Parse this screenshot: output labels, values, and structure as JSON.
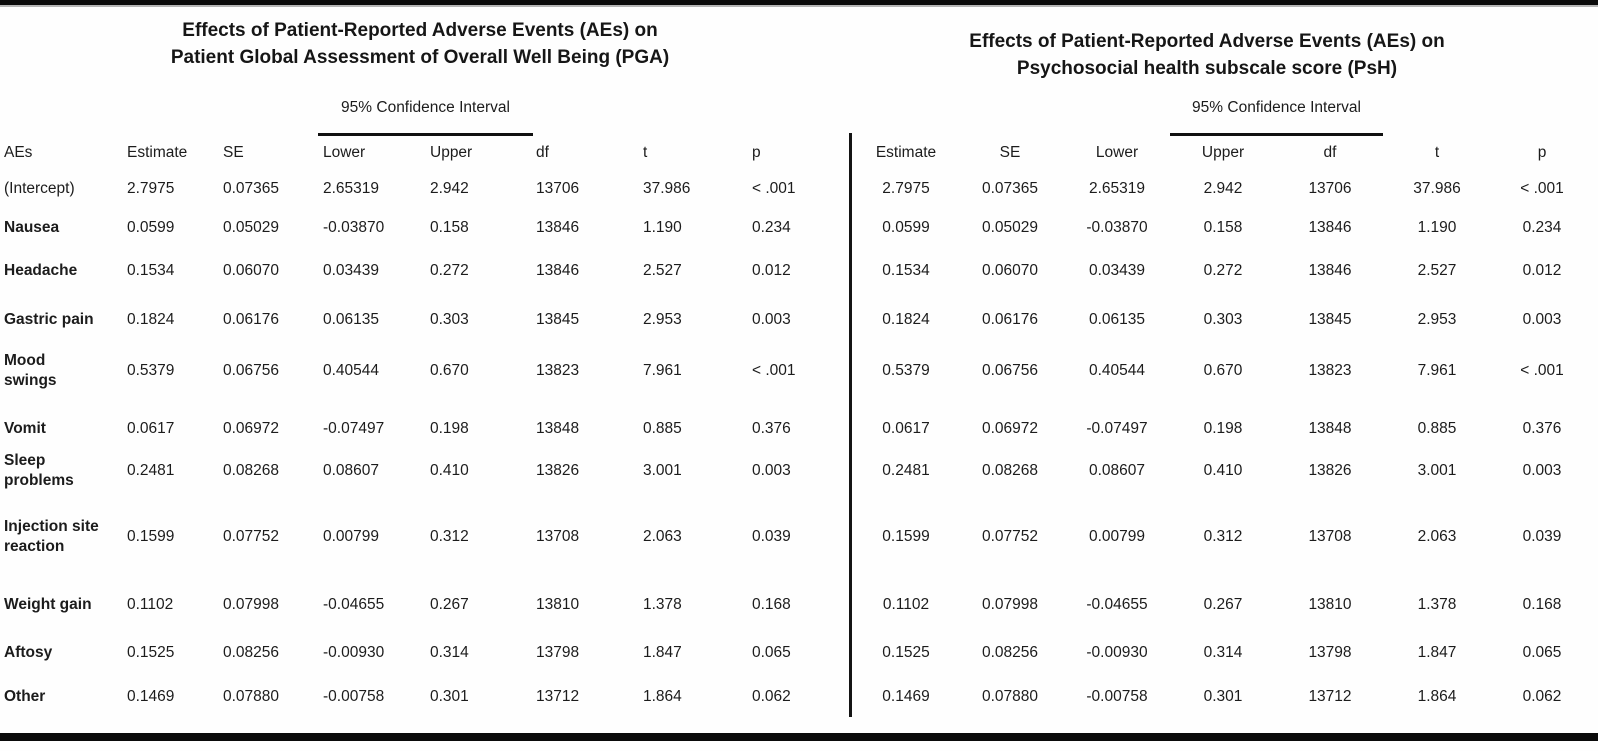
{
  "page": {
    "background": "#fefefe",
    "rule_color": "#0a0a0a"
  },
  "tables": [
    {
      "title_line1": "Effects of Patient-Reported Adverse Events (AEs) on",
      "title_line2": "Patient Global Assessment of Overall Well Being (PGA)",
      "ci_header": "95% Confidence Interval",
      "columns": {
        "aes": "AEs",
        "estimate": "Estimate",
        "se": "SE",
        "lower": "Lower",
        "upper": "Upper",
        "df": "df",
        "t": "t",
        "p": "p"
      },
      "rows": [
        {
          "label": "(Intercept)",
          "estimate": "2.7975",
          "se": "0.07365",
          "lower": "2.65319",
          "upper": "2.942",
          "df": "13706",
          "t": "37.986",
          "p": "< .001"
        },
        {
          "label": "Nausea",
          "estimate": "0.0599",
          "se": "0.05029",
          "lower": "-0.03870",
          "upper": "0.158",
          "df": "13846",
          "t": "1.190",
          "p": "0.234"
        },
        {
          "label": "Headache",
          "estimate": "0.1534",
          "se": "0.06070",
          "lower": "0.03439",
          "upper": "0.272",
          "df": "13846",
          "t": "2.527",
          "p": "0.012"
        },
        {
          "label": "Gastric pain",
          "estimate": "0.1824",
          "se": "0.06176",
          "lower": "0.06135",
          "upper": "0.303",
          "df": "13845",
          "t": "2.953",
          "p": "0.003"
        },
        {
          "label": "Mood swings",
          "estimate": "0.5379",
          "se": "0.06756",
          "lower": "0.40544",
          "upper": "0.670",
          "df": "13823",
          "t": "7.961",
          "p": "< .001"
        },
        {
          "label": "Vomit",
          "estimate": "0.0617",
          "se": "0.06972",
          "lower": "-0.07497",
          "upper": "0.198",
          "df": "13848",
          "t": "0.885",
          "p": "0.376"
        },
        {
          "label": "Sleep problems",
          "estimate": "0.2481",
          "se": "0.08268",
          "lower": "0.08607",
          "upper": "0.410",
          "df": "13826",
          "t": "3.001",
          "p": "0.003"
        },
        {
          "label": "Injection site reaction",
          "estimate": "0.1599",
          "se": "0.07752",
          "lower": "0.00799",
          "upper": "0.312",
          "df": "13708",
          "t": "2.063",
          "p": "0.039"
        },
        {
          "label": "Weight gain",
          "estimate": "0.1102",
          "se": "0.07998",
          "lower": "-0.04655",
          "upper": "0.267",
          "df": "13810",
          "t": "1.378",
          "p": "0.168"
        },
        {
          "label": "Aftosy",
          "estimate": "0.1525",
          "se": "0.08256",
          "lower": "-0.00930",
          "upper": "0.314",
          "df": "13798",
          "t": "1.847",
          "p": "0.065"
        },
        {
          "label": "Other",
          "estimate": "0.1469",
          "se": "0.07880",
          "lower": "-0.00758",
          "upper": "0.301",
          "df": "13712",
          "t": "1.864",
          "p": "0.062"
        }
      ]
    },
    {
      "title_line1": "Effects of Patient-Reported Adverse Events (AEs) on",
      "title_line2": "Psychosocial health subscale score (PsH)",
      "ci_header": "95% Confidence Interval",
      "columns": {
        "estimate": "Estimate",
        "se": "SE",
        "lower": "Lower",
        "upper": "Upper",
        "df": "df",
        "t": "t",
        "p": "p"
      },
      "rows": [
        {
          "label": "(Intercept)",
          "estimate": "2.7975",
          "se": "0.07365",
          "lower": "2.65319",
          "upper": "2.942",
          "df": "13706",
          "t": "37.986",
          "p": "< .001"
        },
        {
          "label": "Nausea",
          "estimate": "0.0599",
          "se": "0.05029",
          "lower": "-0.03870",
          "upper": "0.158",
          "df": "13846",
          "t": "1.190",
          "p": "0.234"
        },
        {
          "label": "Headache",
          "estimate": "0.1534",
          "se": "0.06070",
          "lower": "0.03439",
          "upper": "0.272",
          "df": "13846",
          "t": "2.527",
          "p": "0.012"
        },
        {
          "label": "Gastric pain",
          "estimate": "0.1824",
          "se": "0.06176",
          "lower": "0.06135",
          "upper": "0.303",
          "df": "13845",
          "t": "2.953",
          "p": "0.003"
        },
        {
          "label": "Mood swings",
          "estimate": "0.5379",
          "se": "0.06756",
          "lower": "0.40544",
          "upper": "0.670",
          "df": "13823",
          "t": "7.961",
          "p": "< .001"
        },
        {
          "label": "Vomit",
          "estimate": "0.0617",
          "se": "0.06972",
          "lower": "-0.07497",
          "upper": "0.198",
          "df": "13848",
          "t": "0.885",
          "p": "0.376"
        },
        {
          "label": "Sleep problems",
          "estimate": "0.2481",
          "se": "0.08268",
          "lower": "0.08607",
          "upper": "0.410",
          "df": "13826",
          "t": "3.001",
          "p": "0.003"
        },
        {
          "label": "Injection site reaction",
          "estimate": "0.1599",
          "se": "0.07752",
          "lower": "0.00799",
          "upper": "0.312",
          "df": "13708",
          "t": "2.063",
          "p": "0.039"
        },
        {
          "label": "Weight gain",
          "estimate": "0.1102",
          "se": "0.07998",
          "lower": "-0.04655",
          "upper": "0.267",
          "df": "13810",
          "t": "1.378",
          "p": "0.168"
        },
        {
          "label": "Aftosy",
          "estimate": "0.1525",
          "se": "0.08256",
          "lower": "-0.00930",
          "upper": "0.314",
          "df": "13798",
          "t": "1.847",
          "p": "0.065"
        },
        {
          "label": "Other",
          "estimate": "0.1469",
          "se": "0.07880",
          "lower": "-0.00758",
          "upper": "0.301",
          "df": "13712",
          "t": "1.864",
          "p": "0.062"
        }
      ]
    }
  ]
}
